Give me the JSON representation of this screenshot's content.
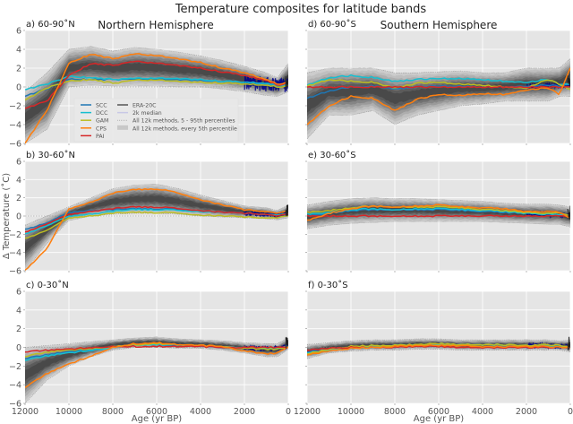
{
  "chart_data": {
    "type": "line",
    "title": "Temperature composites for latitude bands",
    "column_titles": [
      "Northern Hemisphere",
      "Southern Hemisphere"
    ],
    "xlabel": "Age (yr BP)",
    "ylabel": "Δ Temperature (˚C)",
    "xlim": [
      12000,
      0
    ],
    "ylim": [
      -6,
      6
    ],
    "xticks": [
      12000,
      10000,
      8000,
      6000,
      4000,
      2000,
      0
    ],
    "yticks": [
      -6,
      -4,
      -2,
      0,
      2,
      4,
      6
    ],
    "grid": true,
    "legend": {
      "placement": "lower-center of panel a",
      "entries": [
        {
          "name": "SCC",
          "color": "#1f77b4",
          "style": "line"
        },
        {
          "name": "DCC",
          "color": "#17becf",
          "style": "line"
        },
        {
          "name": "GAM",
          "color": "#bcbd22",
          "style": "line"
        },
        {
          "name": "CPS",
          "color": "#ff7f0e",
          "style": "line"
        },
        {
          "name": "PAI",
          "color": "#d62728",
          "style": "line"
        },
        {
          "name": "ERA-20C",
          "color": "#555555",
          "style": "line"
        },
        {
          "name": "2k median",
          "color": "#c8c8e6",
          "style": "line"
        },
        {
          "name": "All 12k methods, 5 - 95th percentiles",
          "color": "#999999",
          "style": "dotted"
        },
        {
          "name": "All 12k methods, every 5th percentile",
          "color": "#c8c8c8",
          "style": "patch"
        }
      ]
    },
    "x": [
      12000,
      11000,
      10000,
      9000,
      8000,
      7000,
      6000,
      5000,
      4000,
      3000,
      2000,
      1000,
      500,
      0
    ],
    "panels": [
      {
        "label": "a) 60-90˚N",
        "hemisphere": "Northern",
        "band_5": [
          -6.0,
          -4.5,
          0.0,
          0.2,
          0.1,
          0.1,
          0.1,
          0.0,
          0.0,
          -0.2,
          -0.5,
          -0.9,
          -1.0,
          -0.5
        ],
        "band_95": [
          -0.5,
          1.5,
          4.0,
          4.3,
          3.8,
          4.2,
          4.0,
          3.7,
          3.3,
          2.8,
          2.2,
          1.5,
          1.0,
          2.5
        ],
        "series": [
          {
            "name": "SCC",
            "values": [
              -1.0,
              -0.2,
              0.8,
              0.8,
              0.8,
              0.8,
              0.8,
              0.8,
              0.7,
              0.6,
              0.5,
              0.3,
              0.1,
              0.2
            ]
          },
          {
            "name": "DCC",
            "values": [
              -0.3,
              0.3,
              1.1,
              1.0,
              0.8,
              0.9,
              0.9,
              0.9,
              0.8,
              0.6,
              0.5,
              0.4,
              0.2,
              0.2
            ]
          },
          {
            "name": "GAM",
            "values": [
              -1.4,
              -0.1,
              0.6,
              0.8,
              0.4,
              0.7,
              0.7,
              0.6,
              0.5,
              0.4,
              0.3,
              0.2,
              0.0,
              0.1
            ]
          },
          {
            "name": "CPS",
            "values": [
              -6.0,
              -2.5,
              2.5,
              3.5,
              3.0,
              3.5,
              3.3,
              3.0,
              2.6,
              2.0,
              1.5,
              0.8,
              0.3,
              0.5
            ]
          },
          {
            "name": "PAI",
            "values": [
              -2.3,
              -1.5,
              1.2,
              2.5,
              2.3,
              2.7,
              2.5,
              2.3,
              2.0,
              1.6,
              1.2,
              0.7,
              0.2,
              0.4
            ]
          }
        ]
      },
      {
        "label": "b) 30-60˚N",
        "hemisphere": "Northern",
        "band_5": [
          -6.0,
          -3.0,
          -0.5,
          0.0,
          0.2,
          0.3,
          0.3,
          0.2,
          0.0,
          -0.1,
          -0.2,
          -0.3,
          -0.4,
          -0.2
        ],
        "band_95": [
          -1.0,
          0.0,
          1.0,
          2.0,
          3.0,
          3.4,
          3.5,
          3.0,
          2.3,
          1.7,
          1.1,
          0.9,
          0.6,
          1.2
        ],
        "series": [
          {
            "name": "SCC",
            "values": [
              -1.5,
              -0.7,
              0.4,
              0.6,
              0.7,
              0.8,
              0.8,
              0.7,
              0.5,
              0.4,
              0.3,
              0.2,
              0.1,
              0.2
            ]
          },
          {
            "name": "DCC",
            "values": [
              -2.0,
              -1.0,
              0.0,
              0.2,
              0.5,
              0.7,
              0.7,
              0.6,
              0.5,
              0.4,
              0.3,
              0.2,
              0.1,
              0.2
            ]
          },
          {
            "name": "GAM",
            "values": [
              -2.5,
              -1.5,
              -0.2,
              0.0,
              0.3,
              0.4,
              0.4,
              0.3,
              0.1,
              0.0,
              -0.1,
              -0.2,
              -0.2,
              0.0
            ]
          },
          {
            "name": "CPS",
            "values": [
              -6.0,
              -3.5,
              0.8,
              1.5,
              2.5,
              2.9,
              3.0,
              2.5,
              1.8,
              1.2,
              0.7,
              0.5,
              0.3,
              0.5
            ]
          },
          {
            "name": "PAI",
            "values": [
              -1.8,
              -0.8,
              0.2,
              0.5,
              0.8,
              1.0,
              1.0,
              0.8,
              0.6,
              0.4,
              0.3,
              0.2,
              0.0,
              0.2
            ]
          }
        ]
      },
      {
        "label": "c) 0-30˚N",
        "hemisphere": "Northern",
        "band_5": [
          -6.0,
          -3.5,
          -2.0,
          -1.0,
          -0.3,
          0.0,
          0.0,
          -0.1,
          -0.1,
          -0.3,
          -0.6,
          -1.0,
          -1.0,
          -0.2
        ],
        "band_95": [
          0.0,
          0.2,
          0.4,
          0.6,
          0.8,
          1.0,
          1.1,
          0.9,
          0.8,
          0.7,
          0.5,
          0.4,
          0.4,
          1.0
        ],
        "series": [
          {
            "name": "SCC",
            "values": [
              -1.2,
              -0.8,
              -0.5,
              -0.2,
              0.1,
              0.3,
              0.3,
              0.2,
              0.1,
              0.0,
              0.0,
              -0.1,
              -0.1,
              0.1
            ]
          },
          {
            "name": "DCC",
            "values": [
              -1.4,
              -0.9,
              -0.6,
              -0.3,
              0.0,
              0.3,
              0.3,
              0.3,
              0.2,
              0.1,
              0.0,
              -0.1,
              -0.1,
              0.1
            ]
          },
          {
            "name": "GAM",
            "values": [
              -1.0,
              -0.5,
              -0.3,
              -0.1,
              0.1,
              0.3,
              0.4,
              0.3,
              0.2,
              0.1,
              -0.1,
              -0.2,
              -0.2,
              0.0
            ]
          },
          {
            "name": "CPS",
            "values": [
              -4.3,
              -2.8,
              -1.8,
              -0.9,
              0.0,
              0.4,
              0.5,
              0.3,
              0.2,
              0.1,
              -0.4,
              -0.7,
              -0.6,
              0.0
            ]
          },
          {
            "name": "PAI",
            "values": [
              -0.5,
              -0.3,
              -0.2,
              0.0,
              0.1,
              0.1,
              0.1,
              0.1,
              0.1,
              0.0,
              0.0,
              0.0,
              0.0,
              0.0
            ]
          }
        ]
      },
      {
        "label": "d) 60-90˚S",
        "hemisphere": "Southern",
        "band_5": [
          -5.5,
          -3.0,
          -3.0,
          -2.5,
          -4.0,
          -3.0,
          -2.5,
          -2.0,
          -1.8,
          -1.5,
          -1.5,
          -1.5,
          -1.0,
          -1.0
        ],
        "band_95": [
          1.5,
          2.0,
          2.0,
          2.0,
          1.5,
          1.5,
          1.6,
          1.7,
          1.5,
          1.5,
          2.0,
          2.0,
          2.0,
          3.0
        ],
        "series": [
          {
            "name": "SCC",
            "values": [
              -1.2,
              -0.4,
              0.0,
              0.1,
              -0.2,
              0.0,
              0.1,
              0.1,
              0.0,
              0.0,
              0.1,
              0.2,
              0.1,
              0.3
            ]
          },
          {
            "name": "DCC",
            "values": [
              0.2,
              1.0,
              1.2,
              1.0,
              0.6,
              0.8,
              0.9,
              0.9,
              0.8,
              0.6,
              0.5,
              0.8,
              0.3,
              0.3
            ]
          },
          {
            "name": "GAM",
            "values": [
              0.1,
              0.8,
              0.6,
              0.5,
              -0.1,
              0.4,
              0.5,
              0.3,
              0.2,
              0.0,
              -0.1,
              0.8,
              0.3,
              -0.3
            ]
          },
          {
            "name": "CPS",
            "values": [
              -4.0,
              -2.0,
              -1.0,
              -1.2,
              -2.5,
              -1.3,
              -0.8,
              -0.9,
              -0.7,
              -0.8,
              -0.3,
              -0.1,
              -0.8,
              2.0
            ]
          },
          {
            "name": "PAI",
            "values": [
              0.0,
              0.0,
              0.0,
              0.0,
              0.0,
              0.0,
              0.0,
              0.0,
              0.0,
              0.0,
              0.0,
              0.0,
              0.0,
              0.0
            ]
          }
        ]
      },
      {
        "label": "e) 30-60˚S",
        "hemisphere": "Southern",
        "band_5": [
          -1.4,
          -1.0,
          -0.8,
          -0.7,
          -0.6,
          -0.6,
          -0.6,
          -0.6,
          -0.6,
          -0.7,
          -0.8,
          -0.9,
          -0.9,
          -1.2
        ],
        "band_95": [
          1.2,
          1.6,
          1.9,
          2.0,
          1.9,
          1.9,
          1.8,
          1.7,
          1.6,
          1.4,
          1.3,
          1.3,
          1.2,
          1.0
        ],
        "series": [
          {
            "name": "SCC",
            "values": [
              0.0,
              0.3,
              0.6,
              0.7,
              0.7,
              0.7,
              0.7,
              0.6,
              0.5,
              0.4,
              0.3,
              0.2,
              0.1,
              0.1
            ]
          },
          {
            "name": "DCC",
            "values": [
              0.2,
              0.4,
              0.7,
              0.8,
              0.7,
              0.8,
              0.8,
              0.7,
              0.6,
              0.5,
              0.3,
              0.2,
              0.1,
              0.1
            ]
          },
          {
            "name": "GAM",
            "values": [
              0.4,
              0.6,
              0.9,
              1.1,
              1.0,
              1.0,
              1.0,
              0.9,
              0.7,
              0.6,
              0.4,
              0.3,
              0.3,
              0.1
            ]
          },
          {
            "name": "CPS",
            "values": [
              -0.5,
              0.3,
              0.8,
              1.1,
              1.0,
              1.1,
              1.2,
              1.0,
              0.9,
              0.8,
              0.5,
              0.5,
              0.4,
              -0.2
            ]
          },
          {
            "name": "PAI",
            "values": [
              0.0,
              0.0,
              0.0,
              0.0,
              0.0,
              0.0,
              0.0,
              0.0,
              0.0,
              0.0,
              0.0,
              0.0,
              0.0,
              0.0
            ]
          }
        ]
      },
      {
        "label": "f) 0-30˚S",
        "hemisphere": "Southern",
        "band_5": [
          -1.2,
          -0.6,
          -0.4,
          -0.3,
          -0.3,
          -0.2,
          -0.2,
          -0.3,
          -0.3,
          -0.3,
          -0.3,
          -0.3,
          -0.3,
          -0.5
        ],
        "band_95": [
          0.3,
          0.5,
          0.7,
          0.8,
          0.8,
          0.9,
          0.9,
          0.8,
          0.8,
          0.8,
          0.8,
          0.8,
          0.7,
          0.8
        ],
        "series": [
          {
            "name": "SCC",
            "values": [
              -0.5,
              -0.2,
              0.0,
              0.1,
              0.2,
              0.3,
              0.3,
              0.3,
              0.3,
              0.2,
              0.2,
              0.2,
              0.1,
              0.1
            ]
          },
          {
            "name": "DCC",
            "values": [
              -0.6,
              -0.3,
              0.0,
              0.1,
              0.2,
              0.3,
              0.3,
              0.3,
              0.3,
              0.3,
              0.2,
              0.2,
              0.2,
              0.1
            ]
          },
          {
            "name": "GAM",
            "values": [
              -0.7,
              -0.2,
              0.1,
              0.2,
              0.2,
              0.3,
              0.4,
              0.3,
              0.3,
              0.3,
              0.2,
              0.3,
              0.2,
              0.1
            ]
          },
          {
            "name": "CPS",
            "values": [
              -0.8,
              -0.4,
              -0.1,
              0.0,
              0.1,
              0.2,
              0.2,
              0.2,
              0.1,
              0.1,
              0.1,
              0.1,
              0.0,
              0.0
            ]
          },
          {
            "name": "PAI",
            "values": [
              -0.3,
              -0.1,
              0.0,
              0.0,
              0.0,
              0.1,
              0.1,
              0.0,
              0.0,
              0.0,
              0.0,
              0.0,
              0.0,
              0.0
            ]
          }
        ]
      }
    ],
    "series_2k_median": {
      "name": "2k median",
      "color": "#00008b",
      "x_range": [
        2000,
        0
      ],
      "note": "dense dark-blue trace over last 2000 years"
    }
  }
}
